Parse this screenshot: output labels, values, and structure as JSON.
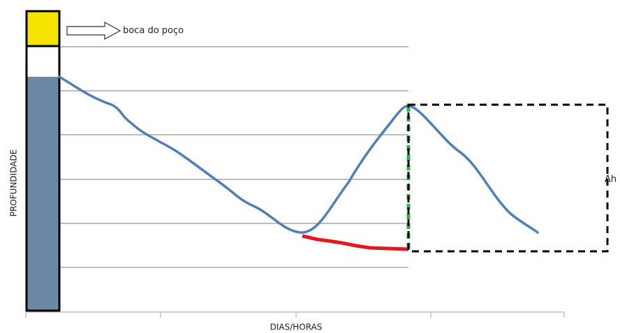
{
  "labels": {
    "wellhead": "boca do poço",
    "y_axis": "PROFUNDIDADE",
    "x_axis": "DIAS/HORAS",
    "delta": "Δh"
  }
}
